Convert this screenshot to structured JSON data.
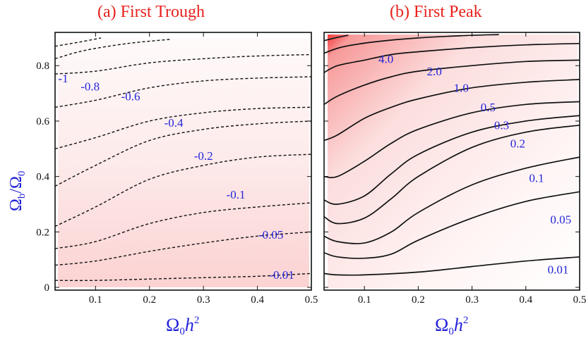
{
  "chart_data": [
    {
      "type": "contour",
      "panel": "a",
      "title": "(a) First Trough",
      "xlabel": "Ω0h2",
      "ylabel": "Ωb/Ω0",
      "xlim": [
        0.025,
        0.5
      ],
      "ylim": [
        -0.01,
        0.92
      ],
      "xticks": [
        0.1,
        0.2,
        0.3,
        0.4,
        0.5
      ],
      "yticks": [
        0,
        0.2,
        0.4,
        0.6,
        0.8
      ],
      "line_style": "dashed",
      "contours": [
        {
          "level": "-0.01",
          "x": [
            0.025,
            0.1,
            0.2,
            0.3,
            0.4,
            0.5
          ],
          "y": [
            0.025,
            0.025,
            0.03,
            0.035,
            0.04,
            0.05
          ],
          "label_at": [
            0.445,
            0.04
          ]
        },
        {
          "level": "-0.05",
          "x": [
            0.025,
            0.1,
            0.2,
            0.3,
            0.4,
            0.5
          ],
          "y": [
            0.08,
            0.095,
            0.13,
            0.16,
            0.185,
            0.2
          ],
          "label_at": [
            0.425,
            0.185
          ]
        },
        {
          "level": "-0.1",
          "x": [
            0.025,
            0.1,
            0.2,
            0.3,
            0.4,
            0.5
          ],
          "y": [
            0.14,
            0.165,
            0.23,
            0.27,
            0.29,
            0.305
          ],
          "label_at": [
            0.36,
            0.33
          ]
        },
        {
          "level": "-0.2",
          "x": [
            0.025,
            0.1,
            0.2,
            0.3,
            0.4,
            0.5
          ],
          "y": [
            0.22,
            0.29,
            0.39,
            0.44,
            0.47,
            0.48
          ],
          "label_at": [
            0.3,
            0.47
          ]
        },
        {
          "level": "-0.4",
          "x": [
            0.025,
            0.1,
            0.2,
            0.3,
            0.4,
            0.5
          ],
          "y": [
            0.365,
            0.44,
            0.53,
            0.57,
            0.59,
            0.6
          ],
          "label_at": [
            0.245,
            0.59
          ]
        },
        {
          "level": "-0.6",
          "x": [
            0.025,
            0.1,
            0.2,
            0.3,
            0.4,
            0.5
          ],
          "y": [
            0.5,
            0.54,
            0.6,
            0.63,
            0.645,
            0.65
          ],
          "label_at": [
            0.165,
            0.685
          ]
        },
        {
          "level": "-0.8",
          "x": [
            0.025,
            0.1,
            0.2,
            0.3,
            0.4,
            0.5
          ],
          "y": [
            0.65,
            0.675,
            0.72,
            0.745,
            0.755,
            0.76
          ],
          "label_at": [
            0.09,
            0.72
          ]
        },
        {
          "level": "-1",
          "x": [
            0.025,
            0.1,
            0.2,
            0.3,
            0.4,
            0.5
          ],
          "y": [
            0.77,
            0.78,
            0.81,
            0.825,
            0.835,
            0.84
          ],
          "label_at": [
            0.04,
            0.75
          ]
        },
        {
          "level": "",
          "x": [
            0.025,
            0.08,
            0.16,
            0.24
          ],
          "y": [
            0.825,
            0.855,
            0.88,
            0.895
          ],
          "label_at": null
        },
        {
          "level": "",
          "x": [
            0.025,
            0.07,
            0.11
          ],
          "y": [
            0.87,
            0.885,
            0.9
          ],
          "label_at": null
        }
      ]
    },
    {
      "type": "contour",
      "panel": "b",
      "title": "(b) First Peak",
      "xlabel": "Ω0h2",
      "ylabel": "",
      "xlim": [
        0.025,
        0.5
      ],
      "ylim": [
        -0.01,
        0.92
      ],
      "xticks": [
        0.1,
        0.2,
        0.3,
        0.4,
        0.5
      ],
      "yticks": [],
      "line_style": "solid",
      "contours": [
        {
          "level": "0.01",
          "x": [
            0.025,
            0.05,
            0.1,
            0.2,
            0.3,
            0.4,
            0.5
          ],
          "y": [
            0.05,
            0.045,
            0.045,
            0.055,
            0.075,
            0.095,
            0.11
          ],
          "label_at": [
            0.46,
            0.06
          ]
        },
        {
          "level": "0.05",
          "x": [
            0.025,
            0.05,
            0.1,
            0.15,
            0.2,
            0.3,
            0.4,
            0.5
          ],
          "y": [
            0.125,
            0.11,
            0.105,
            0.12,
            0.17,
            0.25,
            0.31,
            0.345
          ],
          "label_at": [
            0.465,
            0.24
          ]
        },
        {
          "level": "0.1",
          "x": [
            0.025,
            0.05,
            0.1,
            0.15,
            0.2,
            0.3,
            0.4,
            0.5
          ],
          "y": [
            0.185,
            0.165,
            0.16,
            0.2,
            0.27,
            0.37,
            0.43,
            0.47
          ],
          "label_at": [
            0.42,
            0.39
          ]
        },
        {
          "level": "0.2",
          "x": [
            0.025,
            0.05,
            0.1,
            0.15,
            0.2,
            0.3,
            0.4,
            0.5
          ],
          "y": [
            0.255,
            0.23,
            0.25,
            0.32,
            0.4,
            0.505,
            0.56,
            0.585
          ],
          "label_at": [
            0.385,
            0.515
          ]
        },
        {
          "level": "0.3",
          "x": [
            0.025,
            0.05,
            0.1,
            0.15,
            0.2,
            0.3,
            0.4,
            0.5
          ],
          "y": [
            0.315,
            0.3,
            0.33,
            0.41,
            0.48,
            0.56,
            0.6,
            0.62
          ],
          "label_at": [
            0.355,
            0.58
          ]
        },
        {
          "level": "0.5",
          "x": [
            0.025,
            0.05,
            0.1,
            0.15,
            0.2,
            0.3,
            0.4,
            0.5
          ],
          "y": [
            0.4,
            0.4,
            0.455,
            0.52,
            0.57,
            0.63,
            0.66,
            0.67
          ],
          "label_at": [
            0.33,
            0.645
          ]
        },
        {
          "level": "1.0",
          "x": [
            0.025,
            0.05,
            0.1,
            0.15,
            0.2,
            0.3,
            0.4,
            0.5
          ],
          "y": [
            0.53,
            0.55,
            0.61,
            0.65,
            0.68,
            0.72,
            0.74,
            0.75
          ],
          "label_at": [
            0.28,
            0.715
          ]
        },
        {
          "level": "2.0",
          "x": [
            0.025,
            0.05,
            0.1,
            0.15,
            0.2,
            0.3,
            0.4,
            0.5
          ],
          "y": [
            0.66,
            0.69,
            0.73,
            0.76,
            0.78,
            0.8,
            0.815,
            0.82
          ],
          "label_at": [
            0.23,
            0.775
          ]
        },
        {
          "level": "4.0",
          "x": [
            0.025,
            0.05,
            0.1,
            0.15,
            0.2,
            0.3,
            0.4,
            0.5
          ],
          "y": [
            0.775,
            0.8,
            0.82,
            0.84,
            0.85,
            0.865,
            0.875,
            0.88
          ],
          "label_at": [
            0.14,
            0.82
          ]
        },
        {
          "level": "",
          "x": [
            0.025,
            0.06,
            0.12,
            0.2,
            0.28,
            0.35
          ],
          "y": [
            0.845,
            0.868,
            0.886,
            0.9,
            0.908,
            0.912
          ],
          "label_at": null
        },
        {
          "level": "",
          "x": [
            0.025,
            0.045,
            0.07
          ],
          "y": [
            0.89,
            0.9,
            0.91
          ],
          "label_at": null
        }
      ]
    }
  ]
}
